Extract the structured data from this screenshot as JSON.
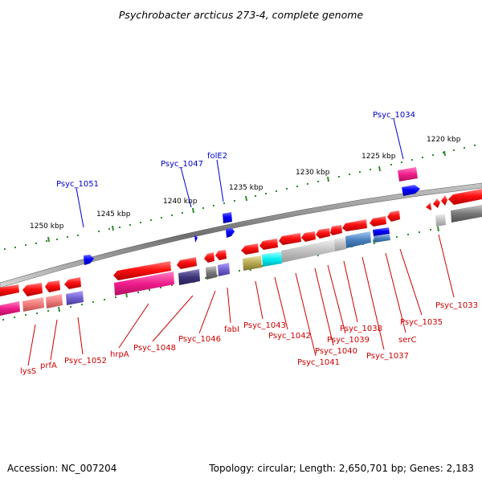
{
  "title": "Psychrobacter arcticus 273-4, complete genome",
  "footer": {
    "accession": "Accession: NC_007204",
    "stats": "Topology: circular; Length: 2,650,701 bp; Genes: 2,183"
  },
  "colors": {
    "backbone": "#7a7a7a",
    "tick_major": "#2e8b2e",
    "tick_minor": "#2e8b2e",
    "forward_gene": "#0000ff",
    "reverse_gene": "#ff1a1a",
    "label_forward": "#0000cc",
    "label_reverse": "#cc0000"
  },
  "scale_labels": [
    "1250 kbp",
    "1245 kbp",
    "1240 kbp",
    "1235 kbp",
    "1230 kbp",
    "1225 kbp",
    "1220 kbp"
  ],
  "forward_labels": [
    "Psyc_1051",
    "Psyc_1047",
    "folE2",
    "Psyc_1034"
  ],
  "reverse_labels": [
    "lysS",
    "prfA",
    "Psyc_1052",
    "hrpA",
    "Psyc_1048",
    "Psyc_1046",
    "fabI",
    "Psyc_1043",
    "Psyc_1042",
    "Psyc_1041",
    "Psyc_1040",
    "Psyc_1039",
    "Psyc_1038",
    "Psyc_1037",
    "serC",
    "Psyc_1035",
    "Psyc_1033"
  ]
}
